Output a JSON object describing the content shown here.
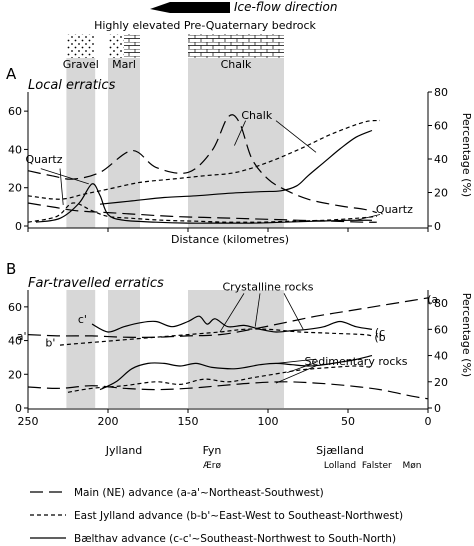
{
  "header": {
    "ice_flow_label": "Ice-flow direction",
    "bedrock_label": "Highly elevated Pre-Quaternary bedrock",
    "bedrock": [
      {
        "name": "Gravel",
        "from": 226,
        "to": 208,
        "pattern": "dots"
      },
      {
        "name": "Marl",
        "from": 200,
        "to": 180,
        "pattern": "dots-bricks"
      },
      {
        "name": "Chalk",
        "from": 150,
        "to": 90,
        "pattern": "bricks"
      }
    ]
  },
  "legend": {
    "items": [
      {
        "style": "long-dash",
        "label": "Main (NE) advance (a-a'~Northeast-Southwest)"
      },
      {
        "style": "short-dash",
        "label": "East Jylland advance (b-b'~East-West to Southeast-Northwest)"
      },
      {
        "style": "solid",
        "label": "Bælthav advance (c-c'~Southeast-Northwest to South-North)"
      }
    ]
  },
  "chart_data": [
    {
      "id": "A",
      "panel_label": "A",
      "title": "Local erratics",
      "type": "line",
      "xlabel": "Distance (kilometres)",
      "ylabel": "",
      "y2label": "Percentage (%)",
      "xlim": [
        250,
        0
      ],
      "ylim": [
        0,
        70
      ],
      "y2lim": [
        0,
        80
      ],
      "yticks": [
        0,
        20,
        40,
        60
      ],
      "y2ticks": [
        0,
        20,
        40,
        60,
        80
      ],
      "annotations": [
        {
          "text": "Chalk",
          "x": 107,
          "y": 58
        },
        {
          "text": "Quartz",
          "x": 240,
          "y": 35
        },
        {
          "text": "Quartz",
          "x": 21,
          "y": 9
        }
      ],
      "series": [
        {
          "style": "long-dash",
          "axis": "y2",
          "group": "Chalk",
          "x": [
            250,
            235,
            222,
            205,
            185,
            170,
            150,
            135,
            125,
            118,
            110,
            100,
            90,
            75,
            55,
            40,
            32
          ],
          "y": [
            33,
            30,
            28,
            32,
            45,
            35,
            32,
            45,
            65,
            62,
            40,
            28,
            22,
            16,
            12,
            10,
            8
          ]
        },
        {
          "style": "short-dash",
          "axis": "y2",
          "group": "Chalk",
          "x": [
            250,
            230,
            215,
            200,
            180,
            160,
            140,
            120,
            100,
            80,
            60,
            40,
            30
          ],
          "y": [
            18,
            16,
            19,
            22,
            26,
            28,
            30,
            32,
            38,
            46,
            55,
            62,
            63
          ]
        },
        {
          "style": "solid",
          "axis": "y2",
          "group": "Chalk",
          "x": [
            205,
            185,
            165,
            145,
            125,
            105,
            92,
            82,
            75,
            65,
            55,
            45,
            35
          ],
          "y": [
            13,
            15,
            17,
            18,
            19.5,
            20.5,
            21,
            24,
            30,
            38,
            46,
            53,
            57
          ]
        },
        {
          "style": "long-dash",
          "axis": "y",
          "group": "Quartz",
          "x": [
            250,
            235,
            220,
            200,
            180,
            160,
            140,
            120,
            100,
            80,
            60,
            40,
            32
          ],
          "y": [
            12,
            10,
            8,
            7,
            6,
            5,
            4.5,
            4,
            3.5,
            3,
            2.5,
            2,
            2
          ]
        },
        {
          "style": "short-dash",
          "axis": "y",
          "group": "Quartz",
          "x": [
            250,
            232,
            222,
            210,
            200,
            185,
            165,
            145,
            125,
            105,
            85,
            65,
            45,
            32
          ],
          "y": [
            2,
            5,
            12,
            8,
            5,
            4,
            3,
            2.5,
            2,
            2,
            2.5,
            3,
            4,
            5
          ]
        },
        {
          "style": "solid",
          "axis": "y",
          "group": "Quartz",
          "x": [
            245,
            230,
            218,
            210,
            205,
            200,
            190,
            170,
            150,
            130,
            110,
            90,
            70,
            50,
            35
          ],
          "y": [
            2,
            4,
            12,
            22,
            16,
            6,
            3,
            2,
            1.5,
            1.5,
            1.5,
            2,
            2.5,
            3,
            3
          ]
        }
      ]
    },
    {
      "id": "B",
      "panel_label": "B",
      "title": "Far-travelled erratics",
      "type": "line",
      "xlabel": "",
      "ylabel": "",
      "y2label": "Percentage (%)",
      "xlim": [
        250,
        0
      ],
      "ylim": [
        0,
        70
      ],
      "y2lim": [
        0,
        90
      ],
      "yticks": [
        0,
        20,
        40,
        60
      ],
      "y2ticks": [
        0,
        20,
        40,
        60,
        80
      ],
      "xticks": [
        250,
        200,
        150,
        100,
        50,
        0
      ],
      "annotations": [
        {
          "text": "Crystalline rocks",
          "x": 100,
          "y": 72
        },
        {
          "text": "Sedimentary rocks",
          "x": 45,
          "y": 28
        }
      ],
      "curve_labels": [
        {
          "text": "(a",
          "x": -3,
          "y": 83
        },
        {
          "text": "a'",
          "x": 254,
          "y": 55
        },
        {
          "text": "b'",
          "x": 236,
          "y": 50
        },
        {
          "text": "(b",
          "x": 30,
          "y": 54
        },
        {
          "text": "c'",
          "x": 216,
          "y": 68
        },
        {
          "text": "(c",
          "x": 30,
          "y": 58
        }
      ],
      "series": [
        {
          "style": "long-dash",
          "axis": "y2",
          "group": "Crystalline",
          "x": [
            250,
            230,
            210,
            190,
            170,
            150,
            130,
            110,
            90,
            70,
            50,
            30,
            10,
            0
          ],
          "y": [
            56,
            55,
            55,
            54,
            54,
            55,
            56,
            60,
            65,
            70,
            74,
            78,
            82,
            84
          ]
        },
        {
          "style": "short-dash",
          "axis": "y2",
          "group": "Crystalline",
          "x": [
            230,
            210,
            190,
            170,
            150,
            130,
            115,
            100,
            80,
            60,
            40,
            35
          ],
          "y": [
            48,
            50,
            52,
            54,
            56,
            58,
            60,
            60,
            58,
            57,
            56,
            55
          ]
        },
        {
          "style": "solid",
          "axis": "y2",
          "group": "Crystalline",
          "x": [
            210,
            200,
            190,
            180,
            170,
            160,
            150,
            143,
            138,
            133,
            125,
            115,
            105,
            95,
            85,
            75,
            65,
            55,
            45,
            35
          ],
          "y": [
            64,
            58,
            62,
            65,
            66,
            62,
            66,
            70,
            64,
            68,
            62,
            63,
            60,
            58,
            59,
            60,
            62,
            66,
            62,
            60
          ]
        },
        {
          "style": "long-dash",
          "axis": "y2",
          "group": "Sedimentary",
          "x": [
            250,
            230,
            210,
            190,
            170,
            150,
            130,
            110,
            90,
            70,
            50,
            30,
            10,
            0
          ],
          "y": [
            16,
            15,
            17,
            15,
            14,
            15,
            17,
            19,
            20,
            19,
            17,
            14,
            9,
            7
          ]
        },
        {
          "style": "short-dash",
          "axis": "y2",
          "group": "Sedimentary",
          "x": [
            225,
            210,
            190,
            170,
            155,
            140,
            125,
            110,
            95,
            80,
            60,
            45,
            35
          ],
          "y": [
            12,
            15,
            17,
            20,
            18,
            22,
            20,
            23,
            26,
            29,
            31,
            32,
            31
          ]
        },
        {
          "style": "solid",
          "axis": "y2",
          "group": "Sedimentary",
          "x": [
            205,
            195,
            185,
            175,
            165,
            155,
            145,
            135,
            120,
            105,
            95,
            85,
            75,
            65,
            55,
            45,
            35
          ],
          "y": [
            14,
            20,
            30,
            34,
            34,
            32,
            34,
            31,
            30,
            33,
            34,
            33,
            32,
            33,
            35,
            37,
            40
          ]
        }
      ]
    }
  ],
  "places": [
    {
      "name": "Jylland",
      "x": 190,
      "size": "large"
    },
    {
      "name": "Fyn",
      "x": 135,
      "size": "large"
    },
    {
      "name": "Ærø",
      "x": 135,
      "size": "small"
    },
    {
      "name": "Sjælland",
      "x": 55,
      "size": "large"
    },
    {
      "name": "Lolland",
      "x": 55,
      "size": "small"
    },
    {
      "name": "Falster",
      "x": 32,
      "size": "small"
    },
    {
      "name": "Møn",
      "x": 10,
      "size": "small"
    }
  ]
}
